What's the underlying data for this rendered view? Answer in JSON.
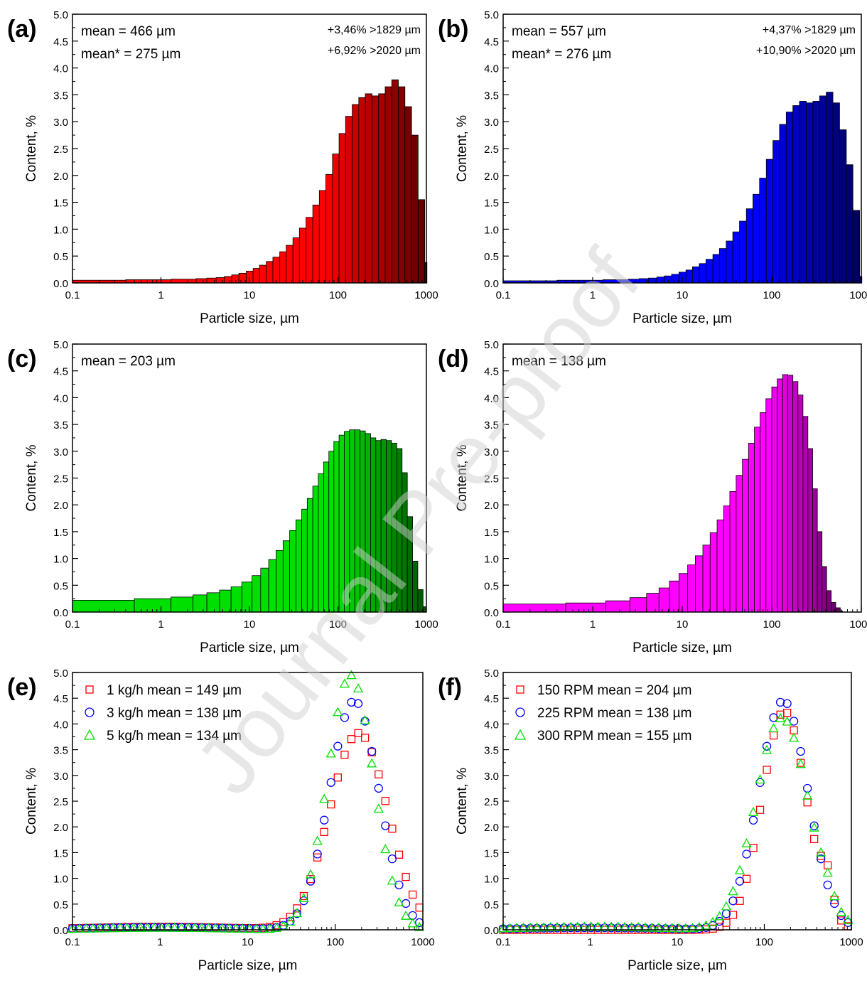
{
  "watermark": "Journal Pre-proof",
  "chart_data": [
    {
      "panel": "(a)",
      "type": "bar",
      "xscale": "log",
      "xlim": [
        0.1,
        1000
      ],
      "ylim": [
        0,
        5
      ],
      "xlabel": "Particle size, µm",
      "ylabel": "Content, %",
      "xticks": [
        "0.1",
        "1",
        "10",
        "100",
        "1000"
      ],
      "yticks": [
        "0.0",
        "0.5",
        "1.0",
        "1.5",
        "2.0",
        "2.5",
        "3.0",
        "3.5",
        "4.0",
        "4.5",
        "5.0"
      ],
      "color": "#ff0000",
      "color_dark": "#3a0000",
      "annotations_left": [
        "mean = 466 µm",
        "mean* = 275 µm"
      ],
      "annotations_right": [
        "+3,46% >1829 µm",
        "+6,92% >2020 µm"
      ],
      "x": [
        0.1,
        0.4,
        1.3,
        2.5,
        3.3,
        4.2,
        5.2,
        6.3,
        7.6,
        9.2,
        11,
        13,
        15.5,
        18.4,
        22,
        26,
        31,
        36.7,
        43.6,
        52,
        61.6,
        73,
        86.8,
        103,
        122,
        145,
        172,
        204,
        243,
        288,
        342,
        406,
        482,
        572,
        680,
        806,
        957
      ],
      "values": [
        0.05,
        0.06,
        0.07,
        0.08,
        0.09,
        0.1,
        0.12,
        0.15,
        0.18,
        0.22,
        0.27,
        0.33,
        0.4,
        0.48,
        0.58,
        0.7,
        0.84,
        1.02,
        1.22,
        1.45,
        1.72,
        2.02,
        2.4,
        2.78,
        3.1,
        3.32,
        3.45,
        3.52,
        3.48,
        3.52,
        3.65,
        3.78,
        3.65,
        3.28,
        2.75,
        1.55,
        0.38
      ]
    },
    {
      "panel": "(b)",
      "type": "bar",
      "xscale": "log",
      "xlim": [
        0.1,
        1000
      ],
      "ylim": [
        0,
        5
      ],
      "xlabel": "Particle size, µm",
      "ylabel": "Content, %",
      "xticks": [
        "0.1",
        "1",
        "10",
        "100",
        "1000"
      ],
      "yticks": [
        "0.0",
        "0.5",
        "1.0",
        "1.5",
        "2.0",
        "2.5",
        "3.0",
        "3.5",
        "4.0",
        "4.5",
        "5.0"
      ],
      "color": "#0000ff",
      "color_dark": "#00003a",
      "annotations_left": [
        "mean = 557 µm",
        "mean* = 276 µm"
      ],
      "annotations_right": [
        "+4,37% >1829 µm",
        "+10,90% >2020 µm"
      ],
      "x": [
        0.1,
        0.4,
        1.3,
        2.5,
        3.3,
        4.2,
        5.2,
        6.3,
        7.6,
        9.2,
        11,
        13,
        15.5,
        18.4,
        22,
        26,
        31,
        36.7,
        43.6,
        52,
        61.6,
        73,
        86.8,
        103,
        122,
        145,
        172,
        204,
        243,
        288,
        342,
        406,
        482,
        572,
        680,
        806,
        957
      ],
      "values": [
        0.04,
        0.05,
        0.06,
        0.07,
        0.08,
        0.09,
        0.11,
        0.13,
        0.16,
        0.2,
        0.24,
        0.3,
        0.36,
        0.44,
        0.53,
        0.64,
        0.78,
        0.95,
        1.15,
        1.38,
        1.65,
        1.95,
        2.3,
        2.65,
        2.95,
        3.18,
        3.3,
        3.38,
        3.35,
        3.38,
        3.48,
        3.55,
        3.35,
        2.85,
        2.2,
        1.35,
        0.12
      ]
    },
    {
      "panel": "(c)",
      "type": "bar",
      "xscale": "log",
      "xlim": [
        0.1,
        1000
      ],
      "ylim": [
        0,
        5
      ],
      "xlabel": "Particle size, µm",
      "ylabel": "Content, %",
      "xticks": [
        "0.1",
        "1",
        "10",
        "100",
        "1000"
      ],
      "yticks": [
        "0.0",
        "0.5",
        "1.0",
        "1.5",
        "2.0",
        "2.5",
        "3.0",
        "3.5",
        "4.0",
        "4.5",
        "5.0"
      ],
      "color": "#00e000",
      "color_dark": "#003a00",
      "annotations_left": [
        "mean = 203 µm"
      ],
      "annotations_right": [],
      "x": [
        0.1,
        0.5,
        1.3,
        2.3,
        3.3,
        4.6,
        6.2,
        8.2,
        10.7,
        13.4,
        16.5,
        20,
        24,
        28.5,
        33.5,
        39,
        45,
        52,
        60,
        69,
        79,
        90,
        103,
        118,
        135,
        155,
        178,
        204,
        234,
        268,
        307,
        352,
        404,
        463,
        531,
        609,
        698,
        800,
        917
      ],
      "values": [
        0.22,
        0.25,
        0.28,
        0.32,
        0.36,
        0.41,
        0.47,
        0.56,
        0.68,
        0.82,
        0.98,
        1.15,
        1.33,
        1.52,
        1.72,
        1.92,
        2.12,
        2.35,
        2.58,
        2.8,
        3.0,
        3.18,
        3.3,
        3.37,
        3.4,
        3.4,
        3.38,
        3.33,
        3.25,
        3.2,
        3.22,
        3.2,
        3.15,
        3.05,
        2.6,
        1.78,
        0.95,
        0.42,
        0.1
      ]
    },
    {
      "panel": "(d)",
      "type": "bar",
      "xscale": "log",
      "xlim": [
        0.1,
        1000
      ],
      "ylim": [
        0,
        5
      ],
      "xlabel": "Particle size, µm",
      "ylabel": "Content, %",
      "xticks": [
        "0.1",
        "1",
        "10",
        "100",
        "1000"
      ],
      "yticks": [
        "0.0",
        "0.5",
        "1.0",
        "1.5",
        "2.0",
        "2.5",
        "3.0",
        "3.5",
        "4.0",
        "4.5",
        "5.0"
      ],
      "color": "#ff00ff",
      "color_dark": "#3a003a",
      "annotations_left": [
        "mean = 138 µm"
      ],
      "annotations_right": [],
      "x": [
        0.1,
        0.5,
        1.4,
        2.6,
        4.0,
        5.5,
        7.2,
        9.2,
        11.5,
        14,
        17,
        20.5,
        24.5,
        29,
        34,
        40,
        47,
        55,
        64,
        74,
        86,
        100,
        115,
        132,
        151,
        172,
        196,
        223,
        253,
        286,
        323,
        364,
        410,
        461,
        518,
        582
      ],
      "values": [
        0.15,
        0.17,
        0.21,
        0.27,
        0.35,
        0.45,
        0.58,
        0.72,
        0.88,
        1.05,
        1.25,
        1.48,
        1.72,
        1.98,
        2.25,
        2.55,
        2.85,
        3.15,
        3.45,
        3.72,
        3.98,
        4.2,
        4.35,
        4.43,
        4.42,
        4.3,
        4.05,
        3.65,
        3.05,
        2.3,
        1.5,
        0.85,
        0.4,
        0.18,
        0.08,
        0.02
      ]
    },
    {
      "panel": "(e)",
      "type": "scatter",
      "xscale": "log",
      "xlim": [
        0.1,
        1000
      ],
      "ylim": [
        0,
        5
      ],
      "xlabel": "Particle size, µm",
      "ylabel": "Content, %",
      "xticks": [
        "0.1",
        "1",
        "10",
        "100",
        "1000"
      ],
      "yticks": [
        "0.0",
        "0.5",
        "1.0",
        "1.5",
        "2.0",
        "2.5",
        "3.0",
        "3.5",
        "4.0",
        "4.5",
        "5.0"
      ],
      "series": [
        {
          "name": "1 kg/h",
          "label": "1 kg/h   mean = 149 µm",
          "marker": "square",
          "color": "#ff0000",
          "peak": 3.82,
          "center": 185,
          "width": 0.47,
          "tail": 0.06,
          "bump": 0
        },
        {
          "name": "3 kg/h",
          "label": "3 kg/h   mean = 138 µm",
          "marker": "circle",
          "color": "#0000ff",
          "peak": 4.45,
          "center": 165,
          "width": 0.4,
          "tail": 0.05,
          "bump": 0
        },
        {
          "name": "5 kg/h",
          "label": "5 kg/h   mean = 134 µm",
          "marker": "triangle",
          "color": "#00e000",
          "peak": 4.95,
          "center": 150,
          "width": 0.37,
          "tail": 0.04,
          "bump": 0
        }
      ]
    },
    {
      "panel": "(f)",
      "type": "scatter",
      "xscale": "log",
      "xlim": [
        0.1,
        1000
      ],
      "ylim": [
        0,
        5
      ],
      "xlabel": "Particle size, µm",
      "ylabel": "Content, %",
      "xticks": [
        "0.1",
        "1",
        "10",
        "100",
        "1000"
      ],
      "yticks": [
        "0.0",
        "0.5",
        "1.0",
        "1.5",
        "2.0",
        "2.5",
        "3.0",
        "3.5",
        "4.0",
        "4.5",
        "5.0"
      ],
      "series": [
        {
          "name": "150 RPM",
          "label": "150 RPM   mean = 204 µm",
          "marker": "square",
          "color": "#ff0000",
          "peak": 4.25,
          "center": 170,
          "width": 0.36,
          "tail": 0.0,
          "bump": 2.1
        },
        {
          "name": "225 RPM",
          "label": "225 RPM   mean = 138 µm",
          "marker": "circle",
          "color": "#0000ff",
          "peak": 4.45,
          "center": 165,
          "width": 0.4,
          "tail": 0.04,
          "bump": 0
        },
        {
          "name": "300 RPM",
          "label": "300 RPM   mean = 155 µm",
          "marker": "triangle",
          "color": "#00e000",
          "peak": 4.12,
          "center": 160,
          "width": 0.43,
          "tail": 0.06,
          "bump": 0.6
        }
      ]
    }
  ]
}
